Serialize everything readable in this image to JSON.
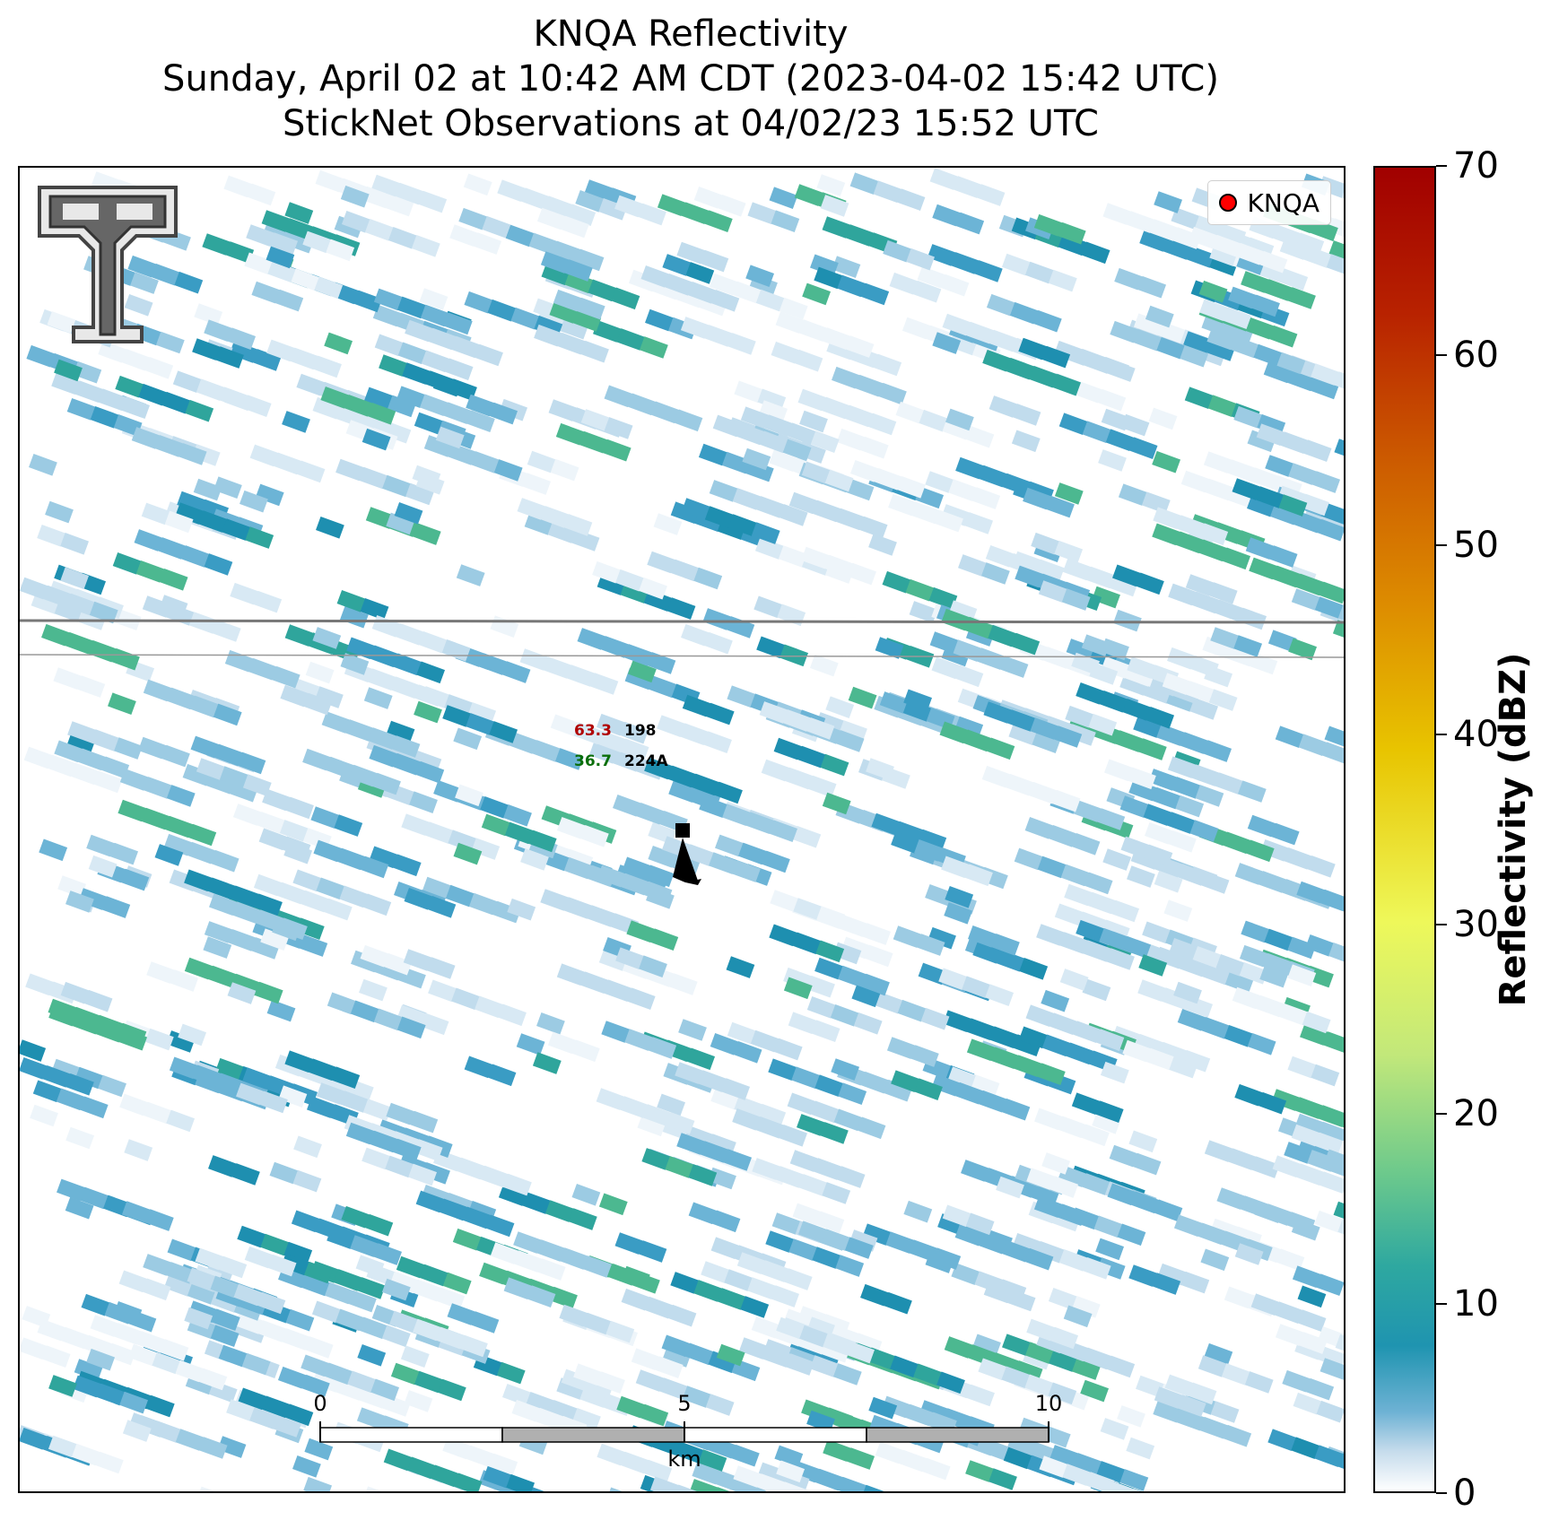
{
  "header": {
    "title": "KNQA Reflectivity",
    "subtitle": "Sunday, April 02 at 10:42 AM CDT (2023-04-02 15:42 UTC)",
    "observations": "StickNet Observations at 04/02/23 15:52 UTC"
  },
  "legend": {
    "label": "KNQA",
    "marker_color": "#ff0000"
  },
  "logo": {
    "icon": "texas-tech-double-t-logo-icon"
  },
  "station": {
    "temperature": "63.3",
    "dewpoint": "36.7",
    "pressure_code": "198",
    "station_id": "224A",
    "temperature_color": "#b00000",
    "dewpoint_color": "#0a6e0a"
  },
  "scale_bar": {
    "ticks": [
      "0",
      "5",
      "10"
    ],
    "unit": "km"
  },
  "colorbar": {
    "label": "Reflectivity (dBZ)",
    "ticks": [
      "0",
      "10",
      "20",
      "30",
      "40",
      "50",
      "60",
      "70"
    ],
    "range": [
      0,
      70
    ]
  }
}
